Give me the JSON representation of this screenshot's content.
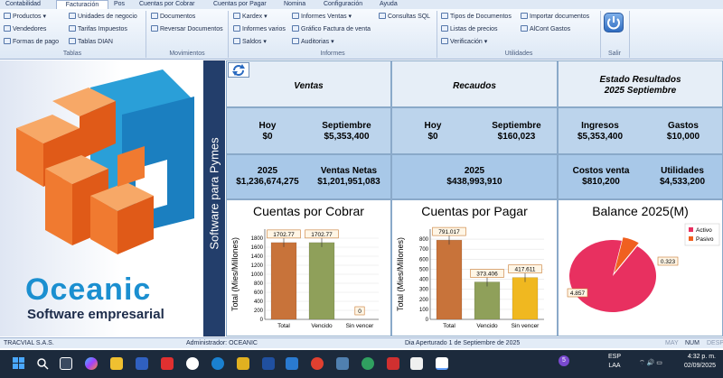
{
  "ribbon": {
    "tabs": [
      "Contabilidad",
      "Facturación",
      "Pos",
      "Cuentas por Cobrar",
      "Cuentas por Pagar",
      "Nomina",
      "Configuración",
      "Ayuda"
    ],
    "active_tab": "Facturación",
    "groups": {
      "tablas": {
        "label": "Tablas",
        "items": [
          "Productos",
          "Vendedores",
          "Formas de pago",
          "Unidades de negocio",
          "Tarifas Impuestos",
          "Tablas DIAN"
        ]
      },
      "movimientos": {
        "label": "Movimientos",
        "items": [
          "Documentos",
          "Reversar Documentos"
        ]
      },
      "informes": {
        "label": "Informes",
        "items": [
          "Kardex",
          "Informes varios",
          "Saldos",
          "Informes Ventas",
          "Gráfico Factura de venta",
          "Auditorias",
          "Consultas SQL"
        ]
      },
      "utilidades": {
        "label": "Utilidades",
        "items": [
          "Tipos de Documentos",
          "Listas de precios",
          "Verificación",
          "Importar documentos",
          "AlCont Gastos"
        ]
      },
      "salir": {
        "label": "Salir"
      }
    }
  },
  "logo": {
    "name": "Oceanic",
    "tagline": "Software empresarial"
  },
  "sidebar_label": "Software para Pymes",
  "dashboard": {
    "ventas": {
      "header": "Ventas",
      "hoy_label": "Hoy",
      "hoy_value": "$0",
      "mes_label": "Septiembre",
      "mes_value": "$5,353,400",
      "anio_label": "2025",
      "anio_value": "$1,236,674,275",
      "netas_label": "Ventas Netas",
      "netas_value": "$1,201,951,083"
    },
    "recaudos": {
      "header": "Recaudos",
      "hoy_label": "Hoy",
      "hoy_value": "$0",
      "mes_label": "Septiembre",
      "mes_value": "$160,023",
      "anio_label": "2025",
      "anio_value": "$438,993,910"
    },
    "estado": {
      "header_line1": "Estado Resultados",
      "header_line2": "2025 Septiembre",
      "ingresos_label": "Ingresos",
      "ingresos_value": "$5,353,400",
      "gastos_label": "Gastos",
      "gastos_value": "$10,000",
      "costos_label": "Costos venta",
      "costos_value": "$810,200",
      "utilidades_label": "Utilidades",
      "utilidades_value": "$4,533,200"
    }
  },
  "chart_data": [
    {
      "type": "bar",
      "title": "Cuentas por Cobrar",
      "ylabel": "Total (Mies/Millones)",
      "categories": [
        "Total",
        "Vencido",
        "Sin vencer"
      ],
      "values": [
        1702.77,
        1702.77,
        0
      ],
      "labels": [
        "1702.77",
        "1702.77",
        "0"
      ],
      "ylim": [
        0,
        2000
      ],
      "yticks": [
        "0",
        "200",
        "400",
        "600",
        "800",
        "1000",
        "1200",
        "1400",
        "1600",
        "1800"
      ],
      "colors": [
        "#c8733a",
        "#8fa05a",
        "#e0a020"
      ]
    },
    {
      "type": "bar",
      "title": "Cuentas por Pagar",
      "ylabel": "Total (Mies/Millones)",
      "categories": [
        "Total",
        "Vencido",
        "Sin vencer"
      ],
      "values": [
        791.017,
        373.406,
        417.611
      ],
      "labels": [
        "791.017",
        "373.406",
        "417.611"
      ],
      "ylim": [
        0,
        900
      ],
      "yticks": [
        "0",
        "100",
        "200",
        "300",
        "400",
        "500",
        "600",
        "700",
        "800"
      ],
      "colors": [
        "#c8733a",
        "#8fa05a",
        "#f0b820"
      ]
    },
    {
      "type": "pie",
      "title": "Balance 2025(M)",
      "legend": [
        "Activo",
        "Pasivo"
      ],
      "values": [
        4.857,
        0.323
      ],
      "labels": [
        "4.857",
        "0.323"
      ],
      "colors": [
        "#e83060",
        "#f06020"
      ],
      "legend_placement": "top-right"
    }
  ],
  "statusbar": {
    "company": "TRACVIAL S.A.S.",
    "user": "Administrador: OCEANIC",
    "period": "Dia Aperturado 1 de Septiembre de 2025",
    "may": "MAY",
    "num": "NUM",
    "desp": "DESP"
  },
  "taskbar": {
    "lang1": "ESP",
    "lang2": "LAA",
    "time": "4:32 p. m.",
    "date": "02/09/2025",
    "notify": "5"
  }
}
